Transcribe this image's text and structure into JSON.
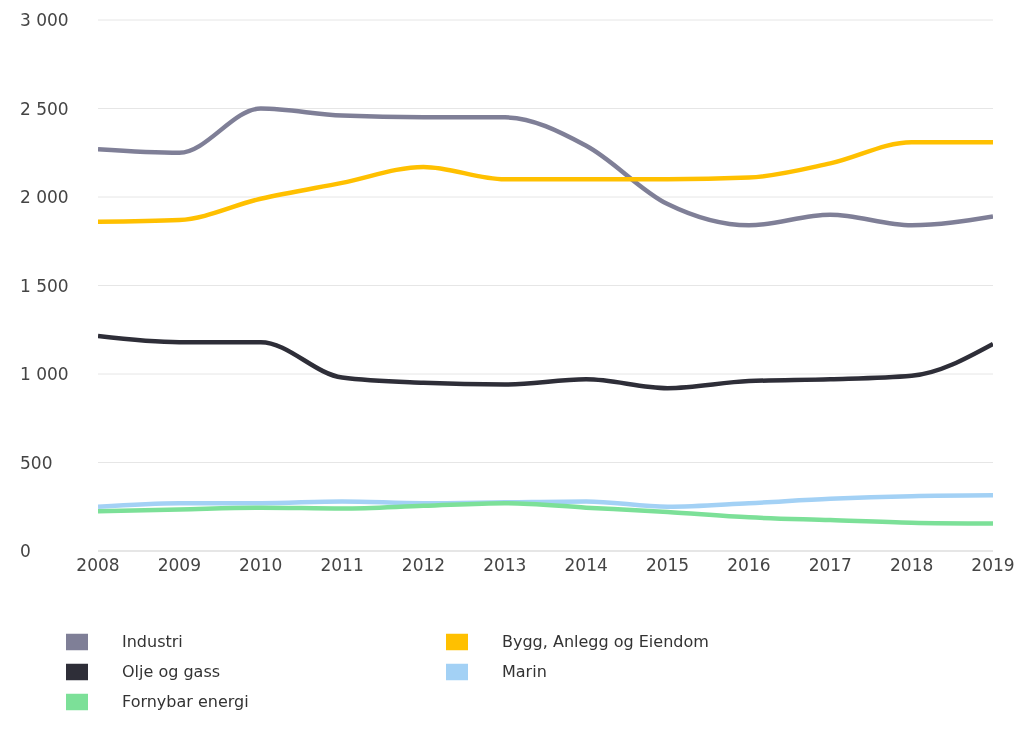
{
  "chart_data": {
    "type": "line",
    "x": [
      2008,
      2009,
      2010,
      2011,
      2012,
      2013,
      2014,
      2015,
      2016,
      2017,
      2018,
      2019
    ],
    "xlim": [
      2008,
      2019
    ],
    "xticks": [
      2008,
      2009,
      2010,
      2011,
      2012,
      2013,
      2014,
      2015,
      2016,
      2017,
      2018,
      2019
    ],
    "ylim": [
      0,
      3000
    ],
    "yticks": [
      0,
      500,
      {
        "value": 1000,
        "label": "1 000"
      },
      {
        "value": 1500,
        "label": "1 500"
      },
      {
        "value": 2000,
        "label": "2 000"
      },
      {
        "value": 2500,
        "label": "2 500"
      },
      {
        "value": 3000,
        "label": "3 000"
      }
    ],
    "grid": "y",
    "legend": "bottom",
    "marker": "none",
    "series": [
      {
        "name": "Industri",
        "color": "#7f7f97",
        "values": [
          2270,
          2250,
          2500,
          2460,
          2450,
          2450,
          2290,
          1960,
          1840,
          1900,
          1840,
          1890
        ]
      },
      {
        "name": "Bygg, Anlegg og Eiendom",
        "color": "#ffc000",
        "values": [
          1860,
          1870,
          1990,
          2080,
          2170,
          2100,
          2100,
          2100,
          2110,
          2190,
          2310,
          2310
        ]
      },
      {
        "name": "Olje og gass",
        "color": "#2e2e38",
        "values": [
          1215,
          1180,
          1180,
          980,
          950,
          940,
          970,
          920,
          960,
          970,
          990,
          1170
        ]
      },
      {
        "name": "Marin",
        "color": "#a3d1f5",
        "values": [
          250,
          270,
          270,
          280,
          270,
          275,
          280,
          250,
          270,
          295,
          310,
          315
        ]
      },
      {
        "name": "Fornybar energi",
        "color": "#7ce098",
        "values": [
          225,
          235,
          245,
          240,
          255,
          270,
          245,
          220,
          190,
          175,
          160,
          155
        ]
      }
    ]
  }
}
